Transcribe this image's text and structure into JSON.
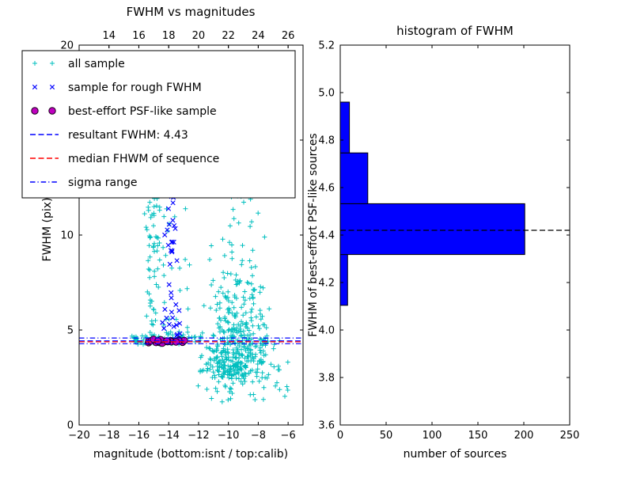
{
  "figure": {
    "background": "#ffffff",
    "frame_color": "#000000"
  },
  "chart_data": [
    {
      "type": "scatter",
      "title": "FWHM vs magnitudes",
      "xlabel": "magnitude (bottom:isnt / top:calib)",
      "ylabel": "FWHM (pix)",
      "xlim": [
        -20,
        -5
      ],
      "ylim": [
        0,
        20
      ],
      "x_ticks": [
        -20,
        -18,
        -16,
        -14,
        -12,
        -10,
        -8,
        -6
      ],
      "y_ticks": [
        0,
        5,
        10,
        15,
        20
      ],
      "top_ticks": [
        14,
        16,
        18,
        20,
        22,
        24,
        26
      ],
      "top_axis_offset": 32,
      "grid": false,
      "legend_position": "upper left",
      "legend": [
        {
          "label": "all sample",
          "marker": "plus",
          "color": "#00bfbf"
        },
        {
          "label": "sample for rough FWHM",
          "marker": "x",
          "color": "#0000ff"
        },
        {
          "label": "best-effort PSF-like sample",
          "marker": "circle",
          "color": "#bf00bf"
        },
        {
          "label": "resultant FWHM: 4.43",
          "marker": "line-dashed",
          "color": "#0000ff"
        },
        {
          "label": "median FHWM of sequence",
          "marker": "line-dashed",
          "color": "#ff0000"
        },
        {
          "label": "sigma range",
          "marker": "line-dashdot",
          "color": "#0000ff"
        }
      ],
      "hlines": [
        {
          "name": "resultant-fwhm",
          "y": 4.43,
          "color": "#0000ff",
          "style": "dashed"
        },
        {
          "name": "median-fwhm",
          "y": 4.38,
          "color": "#ff0000",
          "style": "dashed"
        },
        {
          "name": "sigma-low",
          "y": 4.28,
          "color": "#0000ff",
          "style": "dashdot"
        },
        {
          "name": "sigma-high",
          "y": 4.58,
          "color": "#0000ff",
          "style": "dashdot"
        }
      ],
      "seed": 42,
      "series": [
        {
          "name": "all sample",
          "marker": "plus",
          "color": "#00bfbf",
          "clusters": [
            {
              "n": 450,
              "x": {
                "d": "n",
                "mu": -9.5,
                "s": 1.05,
                "lo": -12.4,
                "hi": -5.6
              },
              "y": {
                "d": "ln",
                "mu": 0.9,
                "s": 0.75,
                "base": 1.8,
                "lo": 1.2,
                "hi": 19.5
              }
            },
            {
              "n": 70,
              "x": {
                "d": "n",
                "mu": -15.1,
                "s": 0.3,
                "lo": -16.2,
                "hi": -14.4
              },
              "y": {
                "d": "u",
                "lo": 4.2,
                "hi": 12.5
              }
            },
            {
              "n": 25,
              "x": {
                "d": "u",
                "lo": -14.4,
                "hi": -12.5
              },
              "y": {
                "d": "u",
                "lo": 4.5,
                "hi": 11.5
              }
            },
            {
              "n": 35,
              "x": {
                "d": "u",
                "lo": -16.3,
                "hi": -6.2
              },
              "y": {
                "d": "u",
                "lo": 12,
                "hi": 19.8
              }
            },
            {
              "n": 70,
              "x": {
                "d": "u",
                "lo": -16.6,
                "hi": -11.8
              },
              "y": {
                "d": "n",
                "mu": 4.5,
                "s": 0.18
              }
            },
            {
              "n": 45,
              "x": {
                "d": "u",
                "lo": -12.3,
                "hi": -6.0
              },
              "y": {
                "d": "u",
                "lo": 1.2,
                "hi": 3.6
              }
            },
            {
              "n": 20,
              "x": {
                "d": "n",
                "mu": -10.0,
                "s": 0.5
              },
              "y": {
                "d": "u",
                "lo": 12,
                "hi": 17
              }
            }
          ]
        },
        {
          "name": "sample for rough FWHM",
          "marker": "x",
          "color": "#0000ff",
          "clusters": [
            {
              "n": 40,
              "x": {
                "d": "n",
                "mu": -13.85,
                "s": 0.28,
                "lo": -14.5,
                "hi": -13.2
              },
              "y": {
                "d": "u",
                "lo": 4.4,
                "hi": 12.2
              }
            },
            {
              "n": 20,
              "x": {
                "d": "u",
                "lo": -15.2,
                "hi": -12.9
              },
              "y": {
                "d": "n",
                "mu": 4.45,
                "s": 0.08
              }
            }
          ]
        },
        {
          "name": "best-effort PSF-like sample",
          "marker": "circle",
          "color": "#bf00bf",
          "edge": "#1a001a",
          "clusters": [
            {
              "n": 24,
              "x": {
                "d": "u",
                "lo": -15.35,
                "hi": -12.85
              },
              "y": {
                "d": "n",
                "mu": 4.42,
                "s": 0.05
              }
            }
          ]
        }
      ]
    },
    {
      "type": "bar",
      "orientation": "horizontal",
      "title": "histogram of FWHM",
      "xlabel": "number of sources",
      "ylabel": "FWHM of best-effort PSF-like sources",
      "xlim": [
        0,
        250
      ],
      "ylim": [
        3.6,
        5.2
      ],
      "x_ticks": [
        0,
        50,
        100,
        150,
        200,
        250
      ],
      "y_tick_labels": [
        "3.6",
        "3.8",
        "4.0",
        "4.2",
        "4.4",
        "4.6",
        "4.8",
        "5.0",
        "5.2"
      ],
      "grid": false,
      "bar_color": "#0000ff",
      "bar_edge_color": "#000000",
      "bin_edges": [
        4.104,
        4.318,
        4.532,
        4.746,
        4.96
      ],
      "values": [
        8,
        201,
        30,
        10
      ],
      "hline": {
        "name": "median-line",
        "y": 4.42,
        "color": "#000000",
        "style": "dashed"
      }
    }
  ]
}
